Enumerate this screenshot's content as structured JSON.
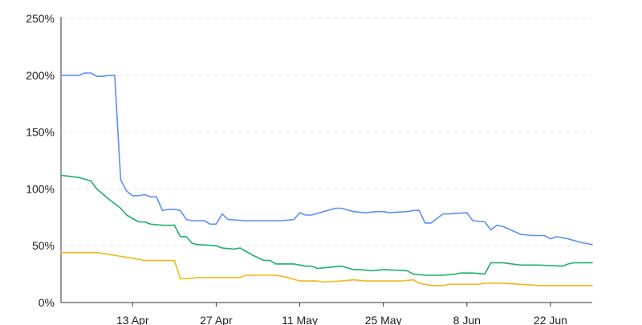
{
  "chart_data": {
    "type": "line",
    "title": "",
    "xlabel": "",
    "ylabel": "",
    "ylim": [
      0,
      250
    ],
    "xlim": [
      "2020-04-01",
      "2020-06-29"
    ],
    "grid": true,
    "y_ticks": [
      {
        "value": 0,
        "label": "0%"
      },
      {
        "value": 50,
        "label": "50%"
      },
      {
        "value": 100,
        "label": "100%"
      },
      {
        "value": 150,
        "label": "150%"
      },
      {
        "value": 200,
        "label": "200%"
      },
      {
        "value": 250,
        "label": "250%"
      }
    ],
    "x_ticks": [
      {
        "value": "2020-04-13",
        "label": "13 Apr"
      },
      {
        "value": "2020-04-27",
        "label": "27 Apr"
      },
      {
        "value": "2020-05-11",
        "label": "11 May"
      },
      {
        "value": "2020-05-25",
        "label": "25 May"
      },
      {
        "value": "2020-06-08",
        "label": "8 Jun"
      },
      {
        "value": "2020-06-22",
        "label": "22 Jun"
      }
    ],
    "series": [
      {
        "color": "#5b8ff9",
        "points": [
          [
            "2020-04-01",
            200
          ],
          [
            "2020-04-03",
            200
          ],
          [
            "2020-04-04",
            200
          ],
          [
            "2020-04-05",
            202
          ],
          [
            "2020-04-06",
            202
          ],
          [
            "2020-04-07",
            199
          ],
          [
            "2020-04-08",
            199
          ],
          [
            "2020-04-09",
            200
          ],
          [
            "2020-04-10",
            200
          ],
          [
            "2020-04-11",
            108
          ],
          [
            "2020-04-12",
            98
          ],
          [
            "2020-04-13",
            94
          ],
          [
            "2020-04-14",
            94
          ],
          [
            "2020-04-15",
            95
          ],
          [
            "2020-04-16",
            93
          ],
          [
            "2020-04-17",
            93
          ],
          [
            "2020-04-18",
            81
          ],
          [
            "2020-04-19",
            82
          ],
          [
            "2020-04-20",
            82
          ],
          [
            "2020-04-21",
            81
          ],
          [
            "2020-04-22",
            73
          ],
          [
            "2020-04-23",
            72
          ],
          [
            "2020-04-25",
            72
          ],
          [
            "2020-04-26",
            69
          ],
          [
            "2020-04-27",
            69
          ],
          [
            "2020-04-28",
            78
          ],
          [
            "2020-04-29",
            73
          ],
          [
            "2020-05-02",
            72
          ],
          [
            "2020-05-08",
            72
          ],
          [
            "2020-05-10",
            73
          ],
          [
            "2020-05-11",
            79
          ],
          [
            "2020-05-12",
            77
          ],
          [
            "2020-05-13",
            77
          ],
          [
            "2020-05-15",
            80
          ],
          [
            "2020-05-17",
            83
          ],
          [
            "2020-05-18",
            83
          ],
          [
            "2020-05-20",
            80
          ],
          [
            "2020-05-22",
            79
          ],
          [
            "2020-05-24",
            80
          ],
          [
            "2020-05-25",
            80
          ],
          [
            "2020-05-26",
            79
          ],
          [
            "2020-05-29",
            80
          ],
          [
            "2020-05-30",
            81
          ],
          [
            "2020-05-31",
            81
          ],
          [
            "2020-06-01",
            70
          ],
          [
            "2020-06-02",
            70
          ],
          [
            "2020-06-04",
            78
          ],
          [
            "2020-06-05",
            78
          ],
          [
            "2020-06-08",
            79
          ],
          [
            "2020-06-09",
            72
          ],
          [
            "2020-06-11",
            71
          ],
          [
            "2020-06-12",
            64
          ],
          [
            "2020-06-13",
            68
          ],
          [
            "2020-06-14",
            67
          ],
          [
            "2020-06-17",
            60
          ],
          [
            "2020-06-19",
            59
          ],
          [
            "2020-06-21",
            59
          ],
          [
            "2020-06-22",
            56
          ],
          [
            "2020-06-23",
            58
          ],
          [
            "2020-06-24",
            57
          ],
          [
            "2020-06-25",
            56
          ],
          [
            "2020-06-27",
            53
          ],
          [
            "2020-06-28",
            52
          ],
          [
            "2020-06-29",
            51
          ]
        ]
      },
      {
        "color": "#1fb069",
        "points": [
          [
            "2020-04-01",
            112
          ],
          [
            "2020-04-04",
            110
          ],
          [
            "2020-04-06",
            107
          ],
          [
            "2020-04-07",
            100
          ],
          [
            "2020-04-09",
            91
          ],
          [
            "2020-04-11",
            83
          ],
          [
            "2020-04-12",
            77
          ],
          [
            "2020-04-14",
            71
          ],
          [
            "2020-04-15",
            71
          ],
          [
            "2020-04-16",
            69
          ],
          [
            "2020-04-18",
            68
          ],
          [
            "2020-04-20",
            68
          ],
          [
            "2020-04-21",
            58
          ],
          [
            "2020-04-22",
            58
          ],
          [
            "2020-04-23",
            52
          ],
          [
            "2020-04-24",
            51
          ],
          [
            "2020-04-27",
            50
          ],
          [
            "2020-04-28",
            48
          ],
          [
            "2020-04-30",
            47
          ],
          [
            "2020-05-01",
            48
          ],
          [
            "2020-05-03",
            42
          ],
          [
            "2020-05-05",
            37
          ],
          [
            "2020-05-06",
            37
          ],
          [
            "2020-05-07",
            34
          ],
          [
            "2020-05-10",
            34
          ],
          [
            "2020-05-12",
            32
          ],
          [
            "2020-05-13",
            32
          ],
          [
            "2020-05-14",
            30
          ],
          [
            "2020-05-16",
            31
          ],
          [
            "2020-05-18",
            32
          ],
          [
            "2020-05-20",
            29
          ],
          [
            "2020-05-21",
            29
          ],
          [
            "2020-05-23",
            28
          ],
          [
            "2020-05-25",
            29
          ],
          [
            "2020-05-29",
            28
          ],
          [
            "2020-05-30",
            25
          ],
          [
            "2020-06-01",
            24
          ],
          [
            "2020-06-04",
            24
          ],
          [
            "2020-06-06",
            25
          ],
          [
            "2020-06-07",
            26
          ],
          [
            "2020-06-09",
            26
          ],
          [
            "2020-06-11",
            25
          ],
          [
            "2020-06-12",
            35
          ],
          [
            "2020-06-14",
            35
          ],
          [
            "2020-06-17",
            33
          ],
          [
            "2020-06-18",
            33
          ],
          [
            "2020-06-20",
            33
          ],
          [
            "2020-06-24",
            32
          ],
          [
            "2020-06-25",
            34
          ],
          [
            "2020-06-26",
            35
          ],
          [
            "2020-06-29",
            35
          ]
        ]
      },
      {
        "color": "#f0b818",
        "points": [
          [
            "2020-04-01",
            44
          ],
          [
            "2020-04-02",
            44
          ],
          [
            "2020-04-04",
            44
          ],
          [
            "2020-04-07",
            44
          ],
          [
            "2020-04-13",
            39
          ],
          [
            "2020-04-15",
            37
          ],
          [
            "2020-04-18",
            37
          ],
          [
            "2020-04-20",
            37
          ],
          [
            "2020-04-21",
            21
          ],
          [
            "2020-04-22",
            21
          ],
          [
            "2020-04-24",
            22
          ],
          [
            "2020-04-26",
            22
          ],
          [
            "2020-04-29",
            22
          ],
          [
            "2020-05-01",
            22
          ],
          [
            "2020-05-02",
            24
          ],
          [
            "2020-05-07",
            24
          ],
          [
            "2020-05-09",
            22
          ],
          [
            "2020-05-11",
            19
          ],
          [
            "2020-05-14",
            19
          ],
          [
            "2020-05-15",
            18
          ],
          [
            "2020-05-18",
            19
          ],
          [
            "2020-05-20",
            20
          ],
          [
            "2020-05-22",
            19
          ],
          [
            "2020-05-28",
            19
          ],
          [
            "2020-05-30",
            20
          ],
          [
            "2020-05-31",
            17
          ],
          [
            "2020-06-02",
            15
          ],
          [
            "2020-06-04",
            15
          ],
          [
            "2020-06-05",
            16
          ],
          [
            "2020-06-07",
            16
          ],
          [
            "2020-06-10",
            16
          ],
          [
            "2020-06-11",
            17
          ],
          [
            "2020-06-14",
            17
          ],
          [
            "2020-06-17",
            16
          ],
          [
            "2020-06-20",
            15
          ],
          [
            "2020-06-29",
            15
          ]
        ]
      }
    ]
  }
}
